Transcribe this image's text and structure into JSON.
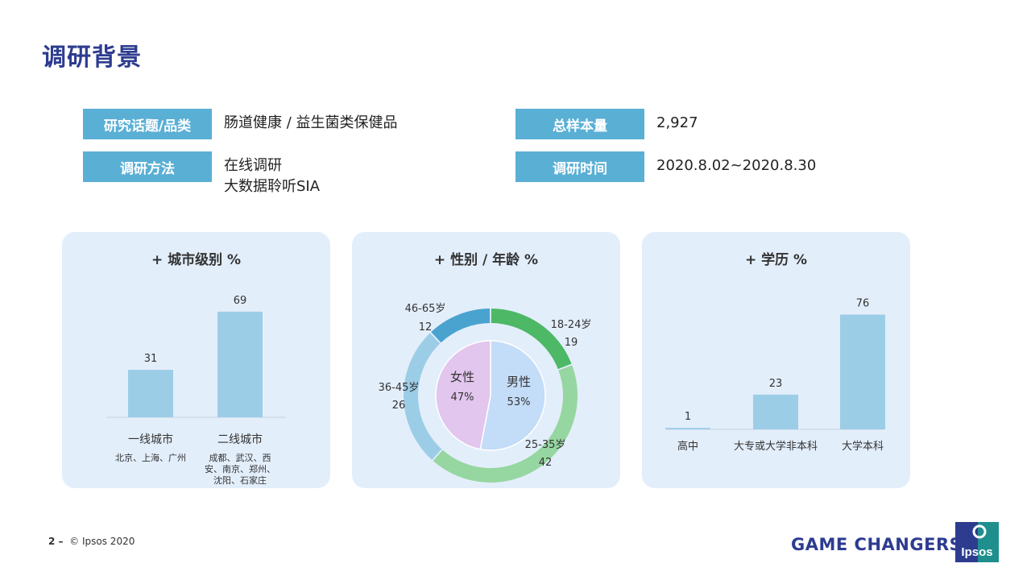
{
  "page": {
    "title": "调研背景",
    "footer_page": "2 –",
    "footer_copyright": "© Ipsos 2020",
    "tagline": "GAME CHANGERS",
    "logo_text": "Ipsos"
  },
  "info": {
    "topic_label": "研究话题/品类",
    "topic_value": "肠道健康 / 益生菌类保健品",
    "method_label": "调研方法",
    "method_value_1": "在线调研",
    "method_value_2": "大数据聆听SIA",
    "sample_label": "总样本量",
    "sample_value": "2,927",
    "period_label": "调研时间",
    "period_value": "2020.8.02~2020.8.30"
  },
  "colors": {
    "title": "#2d3c8f",
    "label_bg": "#5aafd5",
    "panel_bg": "#e3eefb",
    "bar": "#9ccde6",
    "ring_18_24": "#4db866",
    "ring_25_35": "#96d6a0",
    "ring_36_45": "#9ccde6",
    "ring_46_65": "#4aa3cf",
    "female": "#e2c6ee",
    "male": "#c3dcf8"
  },
  "chart_data": [
    {
      "type": "bar",
      "title": "+ 城市级别 %",
      "categories": [
        "一线城市",
        "二线城市"
      ],
      "subcategories": [
        "北京、上海、广州",
        [
          "成都、武汉、西",
          "安、南京、郑州、",
          "沈阳、石家庄"
        ]
      ],
      "values": [
        31,
        69
      ],
      "ylim": [
        0,
        80
      ]
    },
    {
      "type": "pie",
      "title": "+ 性别 / 年龄 %",
      "inner": {
        "labels": [
          "男性",
          "女性"
        ],
        "values": [
          53,
          47
        ],
        "display": [
          "53%",
          "47%"
        ]
      },
      "outer": {
        "labels": [
          "18-24岁",
          "25-35岁",
          "36-45岁",
          "46-65岁"
        ],
        "values": [
          19,
          42,
          26,
          12
        ]
      }
    },
    {
      "type": "bar",
      "title": "+ 学历 %",
      "categories": [
        "高中",
        "大专或大学非本科",
        "大学本科"
      ],
      "values": [
        1,
        23,
        76
      ],
      "ylim": [
        0,
        80
      ]
    }
  ]
}
